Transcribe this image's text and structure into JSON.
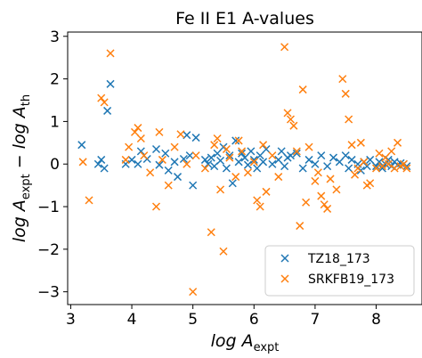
{
  "chart_data": {
    "type": "scatter",
    "title": "Fe II E1 A-values",
    "xlabel": "log A_expt",
    "ylabel": "log A_expt − log A_th",
    "xlim": [
      2.95,
      8.75
    ],
    "ylim": [
      -3.3,
      3.1
    ],
    "xticks": [
      "3",
      "4",
      "5",
      "6",
      "7",
      "8"
    ],
    "yticks": [
      "−3",
      "−2",
      "−1",
      "0",
      "1",
      "2",
      "3"
    ],
    "grid": false,
    "legend_position": "bottom-right",
    "marker": "x",
    "series": [
      {
        "name": "TZ18_173",
        "color": "#1f77b4",
        "points": [
          [
            3.18,
            0.45
          ],
          [
            3.45,
            0.0
          ],
          [
            3.5,
            0.1
          ],
          [
            3.55,
            -0.1
          ],
          [
            3.6,
            1.25
          ],
          [
            3.65,
            1.88
          ],
          [
            3.9,
            0.0
          ],
          [
            4.0,
            0.1
          ],
          [
            4.1,
            0.0
          ],
          [
            4.15,
            0.3
          ],
          [
            4.25,
            0.12
          ],
          [
            4.4,
            0.35
          ],
          [
            4.45,
            -0.02
          ],
          [
            4.55,
            0.25
          ],
          [
            4.6,
            -0.15
          ],
          [
            4.7,
            0.05
          ],
          [
            4.75,
            -0.3
          ],
          [
            4.85,
            0.12
          ],
          [
            4.9,
            0.68
          ],
          [
            4.95,
            0.2
          ],
          [
            5.0,
            -0.5
          ],
          [
            5.05,
            0.62
          ],
          [
            5.2,
            0.1
          ],
          [
            5.25,
            0.0
          ],
          [
            5.3,
            0.15
          ],
          [
            5.35,
            -0.05
          ],
          [
            5.4,
            0.25
          ],
          [
            5.45,
            0.08
          ],
          [
            5.5,
            0.4
          ],
          [
            5.55,
            -0.1
          ],
          [
            5.6,
            0.2
          ],
          [
            5.65,
            -0.45
          ],
          [
            5.7,
            0.55
          ],
          [
            5.75,
            0.05
          ],
          [
            5.8,
            0.25
          ],
          [
            5.85,
            0.15
          ],
          [
            5.9,
            -0.02
          ],
          [
            5.95,
            0.3
          ],
          [
            6.0,
            0.1
          ],
          [
            6.05,
            -0.1
          ],
          [
            6.1,
            0.2
          ],
          [
            6.15,
            0.05
          ],
          [
            6.2,
            0.35
          ],
          [
            6.3,
            0.0
          ],
          [
            6.4,
            0.1
          ],
          [
            6.45,
            0.3
          ],
          [
            6.5,
            -0.05
          ],
          [
            6.55,
            0.15
          ],
          [
            6.6,
            0.2
          ],
          [
            6.7,
            0.25
          ],
          [
            6.8,
            -0.1
          ],
          [
            6.9,
            0.1
          ],
          [
            7.0,
            0.0
          ],
          [
            7.1,
            0.2
          ],
          [
            7.2,
            -0.05
          ],
          [
            7.3,
            0.15
          ],
          [
            7.4,
            0.05
          ],
          [
            7.5,
            0.2
          ],
          [
            7.55,
            -0.1
          ],
          [
            7.6,
            0.1
          ],
          [
            7.7,
            0.0
          ],
          [
            7.75,
            -0.15
          ],
          [
            7.8,
            0.05
          ],
          [
            7.85,
            -0.05
          ],
          [
            7.9,
            0.1
          ],
          [
            8.0,
            -0.05
          ],
          [
            8.05,
            0.05
          ],
          [
            8.1,
            -0.1
          ],
          [
            8.15,
            0.0
          ],
          [
            8.2,
            0.1
          ],
          [
            8.25,
            -0.05
          ],
          [
            8.3,
            0.05
          ],
          [
            8.35,
            -0.02
          ],
          [
            8.4,
            0.02
          ],
          [
            8.45,
            0.0
          ],
          [
            8.5,
            -0.05
          ]
        ]
      },
      {
        "name": "SRKFB19_173",
        "color": "#ff7f0e",
        "points": [
          [
            3.2,
            0.05
          ],
          [
            3.3,
            -0.85
          ],
          [
            3.5,
            1.55
          ],
          [
            3.55,
            1.45
          ],
          [
            3.65,
            2.6
          ],
          [
            3.9,
            0.1
          ],
          [
            3.95,
            0.4
          ],
          [
            4.05,
            0.75
          ],
          [
            4.1,
            0.85
          ],
          [
            4.15,
            0.6
          ],
          [
            4.2,
            0.2
          ],
          [
            4.3,
            -0.2
          ],
          [
            4.4,
            -1.0
          ],
          [
            4.45,
            0.75
          ],
          [
            4.5,
            0.1
          ],
          [
            4.6,
            -0.5
          ],
          [
            4.7,
            0.4
          ],
          [
            4.8,
            0.7
          ],
          [
            4.9,
            0.0
          ],
          [
            5.0,
            -3.0
          ],
          [
            5.05,
            0.2
          ],
          [
            5.2,
            -0.1
          ],
          [
            5.3,
            -1.6
          ],
          [
            5.35,
            0.45
          ],
          [
            5.4,
            0.6
          ],
          [
            5.45,
            -0.6
          ],
          [
            5.5,
            -2.05
          ],
          [
            5.55,
            0.35
          ],
          [
            5.6,
            0.15
          ],
          [
            5.7,
            -0.3
          ],
          [
            5.75,
            0.55
          ],
          [
            5.8,
            0.3
          ],
          [
            5.9,
            -0.2
          ],
          [
            6.0,
            0.05
          ],
          [
            6.05,
            -0.85
          ],
          [
            6.1,
            -1.0
          ],
          [
            6.15,
            0.45
          ],
          [
            6.2,
            -0.65
          ],
          [
            6.3,
            0.2
          ],
          [
            6.4,
            -0.3
          ],
          [
            6.5,
            2.75
          ],
          [
            6.55,
            1.2
          ],
          [
            6.6,
            1.05
          ],
          [
            6.65,
            0.9
          ],
          [
            6.7,
            0.3
          ],
          [
            6.75,
            -1.45
          ],
          [
            6.8,
            1.75
          ],
          [
            6.85,
            -0.9
          ],
          [
            6.9,
            0.4
          ],
          [
            7.0,
            -0.4
          ],
          [
            7.05,
            -0.2
          ],
          [
            7.1,
            -0.75
          ],
          [
            7.15,
            -0.95
          ],
          [
            7.2,
            -1.05
          ],
          [
            7.25,
            -0.35
          ],
          [
            7.35,
            -0.6
          ],
          [
            7.45,
            2.0
          ],
          [
            7.5,
            1.65
          ],
          [
            7.55,
            1.05
          ],
          [
            7.6,
            0.45
          ],
          [
            7.65,
            -0.25
          ],
          [
            7.7,
            -0.1
          ],
          [
            7.75,
            0.5
          ],
          [
            7.8,
            0.05
          ],
          [
            7.85,
            -0.5
          ],
          [
            7.9,
            -0.45
          ],
          [
            8.0,
            -0.1
          ],
          [
            8.05,
            0.25
          ],
          [
            8.1,
            -0.05
          ],
          [
            8.15,
            0.15
          ],
          [
            8.2,
            0.0
          ],
          [
            8.25,
            0.3
          ],
          [
            8.3,
            -0.1
          ],
          [
            8.35,
            0.5
          ],
          [
            8.4,
            -0.05
          ],
          [
            8.45,
            0.0
          ],
          [
            8.5,
            -0.1
          ]
        ]
      }
    ]
  }
}
